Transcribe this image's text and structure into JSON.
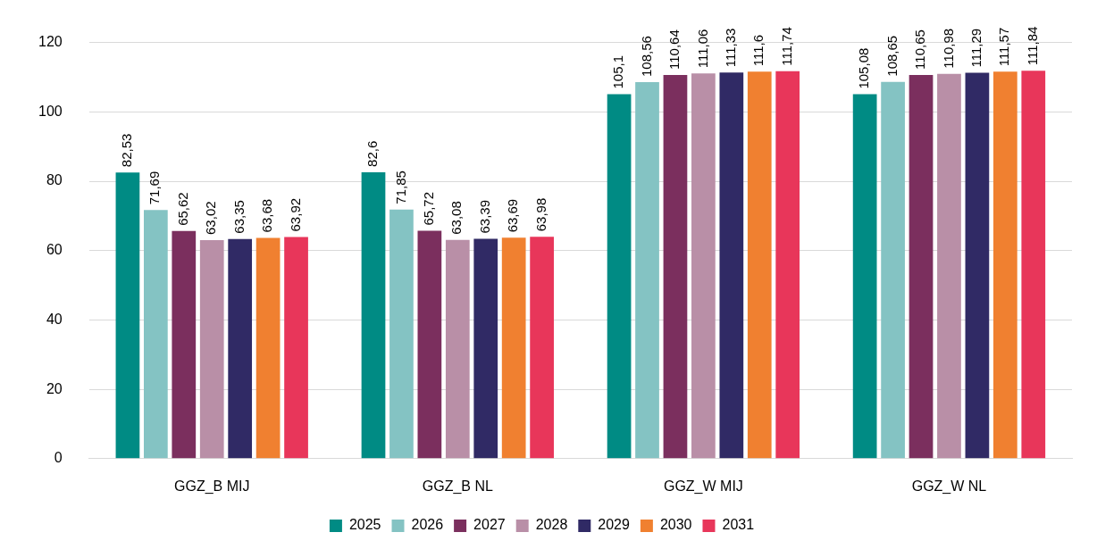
{
  "chart_data": {
    "type": "bar",
    "categories": [
      "GGZ_B MIJ",
      "GGZ_B NL",
      "GGZ_W MIJ",
      "GGZ_W NL"
    ],
    "series": [
      {
        "name": "2025",
        "color": "#008b84",
        "values": [
          82.53,
          82.6,
          105.1,
          105.08
        ],
        "value_labels": [
          "82,53",
          "82,6",
          "105,1",
          "105,08"
        ]
      },
      {
        "name": "2026",
        "color": "#84c3c3",
        "values": [
          71.69,
          71.85,
          108.56,
          108.65
        ],
        "value_labels": [
          "71,69",
          "71,85",
          "108,56",
          "108,65"
        ]
      },
      {
        "name": "2027",
        "color": "#7b2f5e",
        "values": [
          65.62,
          65.72,
          110.64,
          110.65
        ],
        "value_labels": [
          "65,62",
          "65,72",
          "110,64",
          "110,65"
        ]
      },
      {
        "name": "2028",
        "color": "#b98fa7",
        "values": [
          63.02,
          63.08,
          111.06,
          110.98
        ],
        "value_labels": [
          "63,02",
          "63,08",
          "111,06",
          "110,98"
        ]
      },
      {
        "name": "2029",
        "color": "#302a65",
        "values": [
          63.35,
          63.39,
          111.33,
          111.29
        ],
        "value_labels": [
          "63,35",
          "63,39",
          "111,33",
          "111,29"
        ]
      },
      {
        "name": "2030",
        "color": "#f08030",
        "values": [
          63.68,
          63.69,
          111.6,
          111.57
        ],
        "value_labels": [
          "63,68",
          "63,69",
          "111,6",
          "111,57"
        ]
      },
      {
        "name": "2031",
        "color": "#e8365a",
        "values": [
          63.92,
          63.98,
          111.74,
          111.84
        ],
        "value_labels": [
          "63,92",
          "63,98",
          "111,74",
          "111,84"
        ]
      }
    ],
    "ylim": [
      0,
      120
    ],
    "yticks": [
      0,
      20,
      40,
      60,
      80,
      100,
      120
    ],
    "grid": "y",
    "legend": "bottom"
  }
}
